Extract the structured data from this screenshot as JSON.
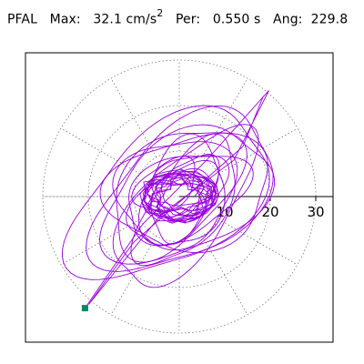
{
  "header": {
    "station": "PFAL",
    "max_label": "Max:",
    "max_value": "32.1 cm/s",
    "max_exp": "2",
    "per_label": "Per:",
    "per_value": "0.550 s",
    "ang_label": "Ang:",
    "ang_value": "229.8"
  },
  "chart_data": {
    "type": "polar-orbit",
    "r_ticks": [
      10,
      20,
      30
    ],
    "r_tick_labels": [
      "10",
      "20",
      "30"
    ],
    "r_max": 35,
    "rings": [
      10,
      20,
      30
    ],
    "spoke_angles_deg": [
      0,
      30,
      60,
      90,
      120,
      150,
      180,
      210,
      240,
      270,
      300,
      330
    ],
    "grid_style": "dotted",
    "orbit_color": "#9900dd",
    "marker_color": "#008866",
    "peak": {
      "magnitude": 32.1,
      "angle_deg": 229.8
    }
  }
}
